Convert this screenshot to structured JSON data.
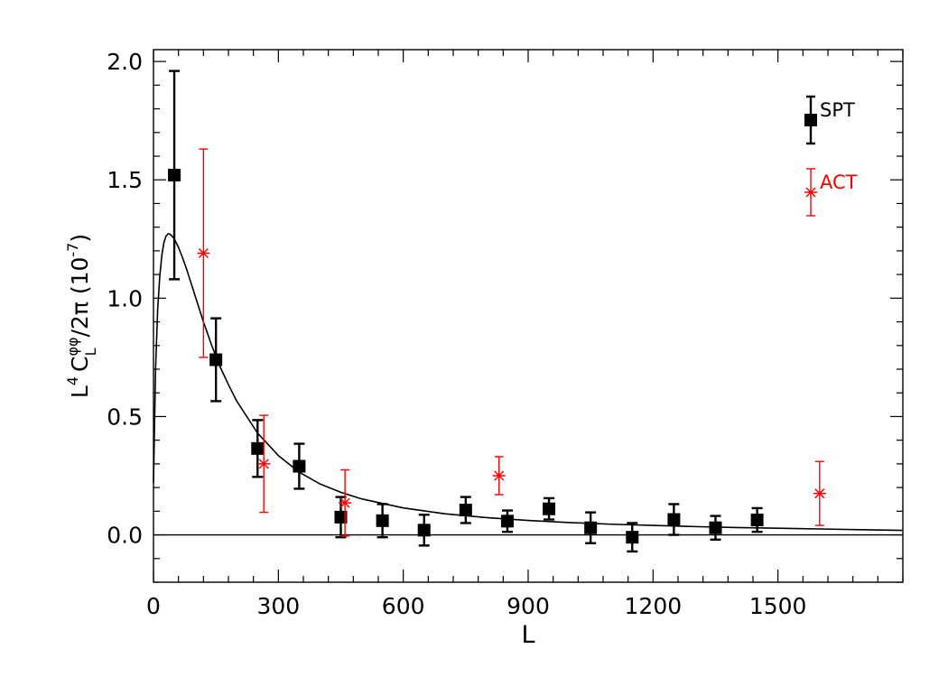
{
  "chart_data": {
    "type": "scatter",
    "xlabel": "L",
    "ylabel": {
      "base": "L",
      "power": "4",
      "symbol": "C",
      "sub": "L",
      "sup": "φφ",
      "suffix": "/2π (10",
      "exponent": "-7",
      "close": ")"
    },
    "xlim": [
      0,
      1800
    ],
    "ylim": [
      -0.2,
      2.05
    ],
    "xticks": [
      0,
      300,
      600,
      900,
      1200,
      1500
    ],
    "xtick_labels": [
      "0",
      "300",
      "600",
      "900",
      "1200",
      "1500"
    ],
    "yticks": [
      0.0,
      0.5,
      1.0,
      1.5,
      2.0
    ],
    "ytick_labels": [
      "0.0",
      "0.5",
      "1.0",
      "1.5",
      "2.0"
    ],
    "x_minor_step": 60,
    "y_minor_step": 0.1,
    "grid": false,
    "legend_position": "top-right",
    "series": [
      {
        "name": "SPT",
        "marker": "square",
        "color": "#000000",
        "points": [
          {
            "x": 50,
            "y": 1.52,
            "yerr": 0.44
          },
          {
            "x": 150,
            "y": 0.74,
            "yerr": 0.175
          },
          {
            "x": 250,
            "y": 0.365,
            "yerr": 0.12
          },
          {
            "x": 350,
            "y": 0.29,
            "yerr": 0.095
          },
          {
            "x": 450,
            "y": 0.075,
            "yerr": 0.085
          },
          {
            "x": 550,
            "y": 0.06,
            "yerr": 0.07
          },
          {
            "x": 650,
            "y": 0.02,
            "yerr": 0.065
          },
          {
            "x": 750,
            "y": 0.105,
            "yerr": 0.055
          },
          {
            "x": 850,
            "y": 0.058,
            "yerr": 0.045
          },
          {
            "x": 950,
            "y": 0.11,
            "yerr": 0.045
          },
          {
            "x": 1050,
            "y": 0.03,
            "yerr": 0.065
          },
          {
            "x": 1150,
            "y": -0.01,
            "yerr": 0.06
          },
          {
            "x": 1250,
            "y": 0.065,
            "yerr": 0.065
          },
          {
            "x": 1350,
            "y": 0.03,
            "yerr": 0.05
          },
          {
            "x": 1450,
            "y": 0.063,
            "yerr": 0.05
          }
        ]
      },
      {
        "name": "ACT",
        "marker": "asterisk",
        "color": "#ff0000",
        "points": [
          {
            "x": 120,
            "y": 1.19,
            "yerr": 0.44
          },
          {
            "x": 265,
            "y": 0.3,
            "yerr": 0.205
          },
          {
            "x": 460,
            "y": 0.135,
            "yerr": 0.14
          },
          {
            "x": 830,
            "y": 0.25,
            "yerr": 0.08
          },
          {
            "x": 1600,
            "y": 0.175,
            "yerr": 0.135
          }
        ]
      }
    ],
    "theory_curve": {
      "x": [
        0,
        5,
        10,
        15,
        20,
        25,
        30,
        35,
        40,
        45,
        50,
        60,
        70,
        80,
        90,
        100,
        120,
        140,
        160,
        180,
        200,
        250,
        300,
        350,
        400,
        450,
        500,
        600,
        700,
        800,
        900,
        1000,
        1100,
        1200,
        1300,
        1400,
        1500,
        1600,
        1700,
        1800
      ],
      "y": [
        0.22,
        0.7,
        0.95,
        1.09,
        1.18,
        1.235,
        1.262,
        1.272,
        1.27,
        1.262,
        1.25,
        1.215,
        1.17,
        1.12,
        1.065,
        1.01,
        0.9,
        0.8,
        0.71,
        0.635,
        0.565,
        0.43,
        0.335,
        0.265,
        0.215,
        0.18,
        0.152,
        0.114,
        0.089,
        0.073,
        0.061,
        0.052,
        0.045,
        0.04,
        0.035,
        0.031,
        0.028,
        0.025,
        0.022,
        0.019
      ]
    }
  }
}
